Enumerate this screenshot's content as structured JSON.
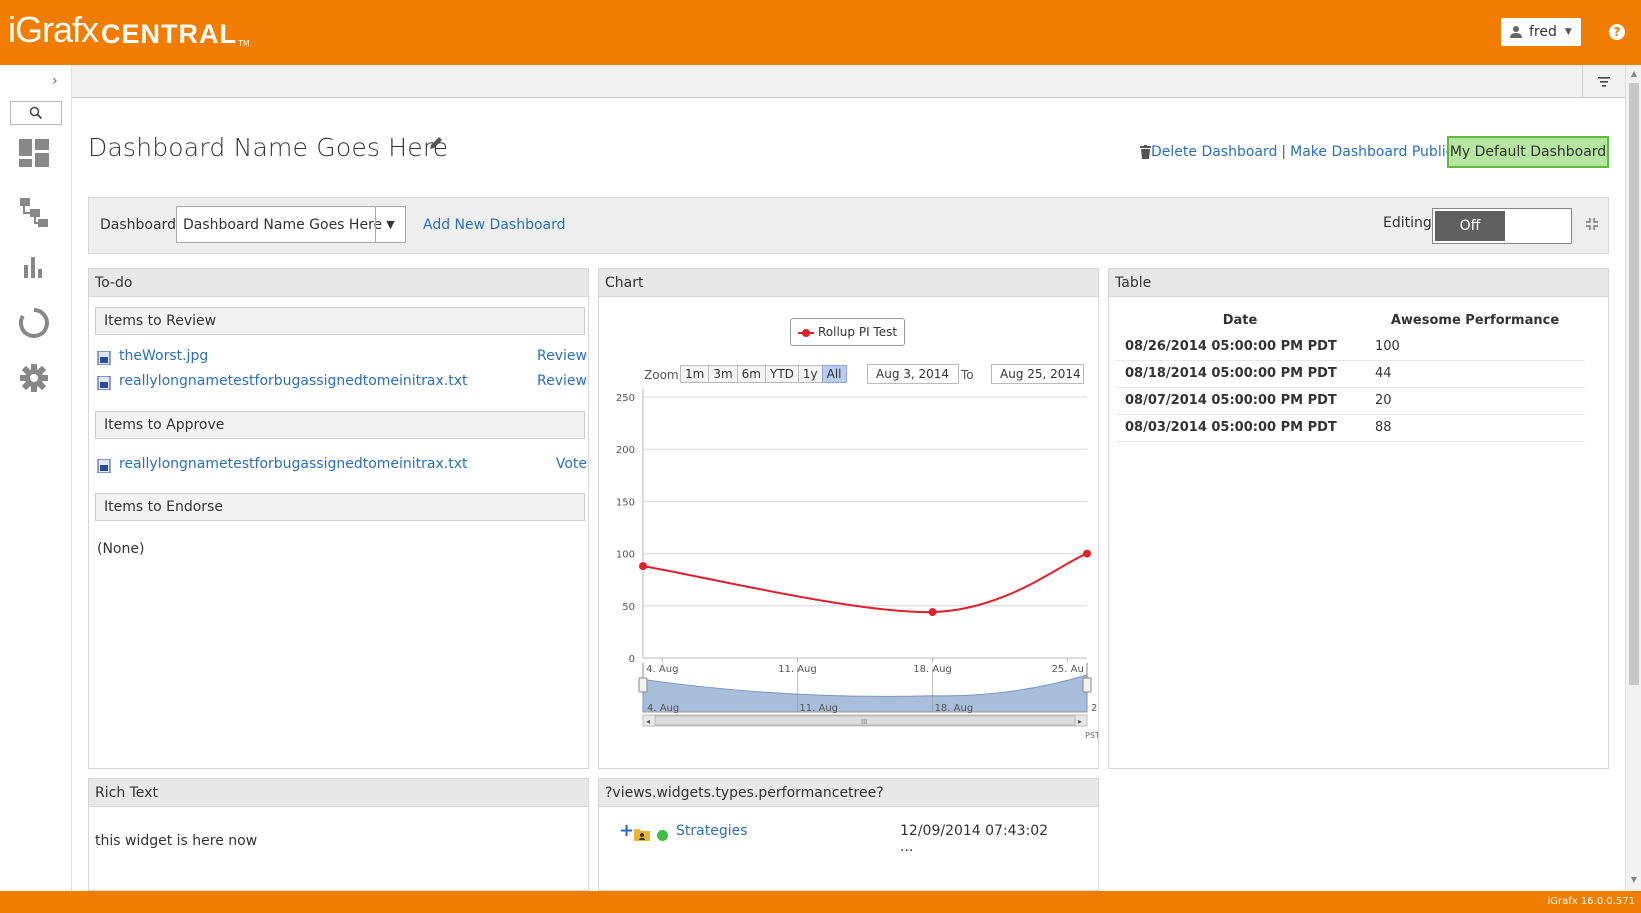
{
  "app": {
    "logo_main": "iGrafx",
    "logo_sub": "CENTRAL",
    "logo_tm": "TM",
    "user": "fred",
    "help": "?",
    "version": "iGrafx 16.0.0.571"
  },
  "colors": {
    "brand": "#f07c00",
    "link": "#2a6ebb",
    "default_btn_bg": "#b7e6a2",
    "default_btn_border": "#5bbd3a",
    "series": "#e0202a",
    "navigator_fill": "#a9bedb"
  },
  "nav": {
    "icons": [
      "chevron-right-icon",
      "search-icon",
      "dashboard-icon",
      "hierarchy-icon",
      "bar-chart-icon",
      "circle-progress-icon",
      "settings-gear-icon"
    ]
  },
  "header": {
    "title": "Dashboard Name Goes Here",
    "delete_link": "Delete Dashboard",
    "separator": "|",
    "public_link": "Make Dashboard Public",
    "default_button": "My Default Dashboard"
  },
  "controls": {
    "dashboard_label": "Dashboard",
    "selected_dashboard": "Dashboard Name Goes Here",
    "add_new": "Add New Dashboard",
    "editing_label": "Editing",
    "editing_state": "Off"
  },
  "todo": {
    "title": "To-do",
    "review_header": "Items to Review",
    "review_items": [
      {
        "name": "theWorst.jpg",
        "action": "Review"
      },
      {
        "name": "reallylongnametestforbugassignedtomeinitrax.txt",
        "action": "Review"
      }
    ],
    "approve_header": "Items to Approve",
    "approve_items": [
      {
        "name": "reallylongnametestforbugassignedtomeinitrax.txt",
        "action": "Vote"
      }
    ],
    "endorse_header": "Items to Endorse",
    "endorse_empty": "(None)"
  },
  "chart_widget": {
    "title": "Chart",
    "legend": "Rollup PI Test",
    "zoom_label": "Zoom",
    "zoom_buttons": [
      "1m",
      "3m",
      "6m",
      "YTD",
      "1y",
      "All"
    ],
    "zoom_selected": "All",
    "from_date": "Aug 3, 2014",
    "to_label": "To",
    "to_date": "Aug 25, 2014",
    "nav_labels": [
      "4. Aug",
      "11. Aug",
      "18. Aug",
      "25."
    ],
    "timezone": "PST"
  },
  "chart_data": {
    "type": "line",
    "series": [
      {
        "name": "Rollup PI Test",
        "x": [
          "2014-08-03",
          "2014-08-18",
          "2014-08-26"
        ],
        "values": [
          88,
          44,
          100
        ]
      }
    ],
    "x_ticks": [
      "4. Aug",
      "11. Aug",
      "18. Aug",
      "25. Au"
    ],
    "y_ticks": [
      0,
      50,
      100,
      150,
      200,
      250
    ],
    "ylim": [
      0,
      250
    ],
    "grid": true,
    "legend_position": "top-center"
  },
  "table_widget": {
    "title": "Table",
    "columns": [
      "Date",
      "Awesome Performance"
    ],
    "rows": [
      [
        "08/26/2014 05:00:00 PM PDT",
        "100"
      ],
      [
        "08/18/2014 05:00:00 PM PDT",
        "44"
      ],
      [
        "08/07/2014 05:00:00 PM PDT",
        "20"
      ],
      [
        "08/03/2014 05:00:00 PM PDT",
        "88"
      ]
    ]
  },
  "richtext_widget": {
    "title": "Rich Text",
    "body": "this widget is here now"
  },
  "tree_widget": {
    "title": "?views.widgets.types.performancetree?",
    "expand": "+",
    "node_name": "Strategies",
    "node_date": "12/09/2014 07:43:02 ..."
  }
}
